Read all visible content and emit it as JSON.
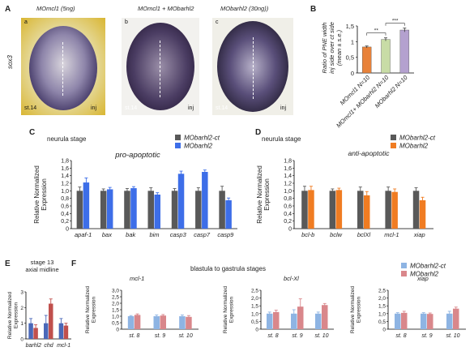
{
  "figure": {
    "panel_letters": [
      "A",
      "B",
      "C",
      "D",
      "E",
      "F"
    ]
  },
  "panelA": {
    "row_label": "sox3",
    "embryos": [
      {
        "title": "MOmcl1 (5ng)",
        "sub": "a",
        "stage": "st.14",
        "side": "inj"
      },
      {
        "title": "MOmcl1 + MObarhl2",
        "sub": "b",
        "stage": "st.14",
        "side": "inj"
      },
      {
        "title": "MObarhl2 (30ng))",
        "sub": "c",
        "stage": "st.14",
        "side": "inj"
      }
    ],
    "colors": {
      "bg_outer": "#e9c84a",
      "embryo": "#3a2f5e",
      "plate_center": "#f2f0e8"
    }
  },
  "chart_data": [
    {
      "id": "B",
      "type": "bar",
      "ylabel": "Ratio of PNE width\ninj side over ct side\n(mean ± s.e.)",
      "ylim": [
        0,
        1.5
      ],
      "yticks": [
        "0",
        "0,5",
        "1",
        "1,5"
      ],
      "categories": [
        "MOmcl1 N=10",
        "MOmcl1+ MObarhl2 N=10",
        "MObarhl2 N=10"
      ],
      "values": [
        0.83,
        1.07,
        1.37
      ],
      "errors": [
        0.03,
        0.05,
        0.06
      ],
      "colors": [
        "#e8823a",
        "#c8dca6",
        "#b4a1cf"
      ],
      "significance": [
        "**",
        "***"
      ]
    },
    {
      "id": "C",
      "type": "bar",
      "title": "pro-apoptotic",
      "header": "neurula stage",
      "ylabel": "Relative Normalized\nExpression",
      "ylim": [
        0,
        1.8
      ],
      "yticks": [
        "0",
        "0,2",
        "0,4",
        "0,6",
        "0,8",
        "1,0",
        "1,2",
        "1,4",
        "1,6",
        "1,8"
      ],
      "categories": [
        "apaf-1",
        "bax",
        "bak",
        "bim",
        "casp3",
        "casp7",
        "casp9"
      ],
      "series": [
        {
          "name": "MObarhl2-ct",
          "color": "#595959",
          "values": [
            1.0,
            1.0,
            1.0,
            1.0,
            1.0,
            1.0,
            1.0
          ],
          "errors": [
            0.1,
            0.05,
            0.06,
            0.08,
            0.06,
            0.08,
            0.12
          ]
        },
        {
          "name": "MObarhl2",
          "color": "#3d6ee8",
          "values": [
            1.22,
            1.04,
            1.07,
            0.9,
            1.45,
            1.5,
            0.75
          ],
          "errors": [
            0.12,
            0.05,
            0.04,
            0.05,
            0.07,
            0.05,
            0.06
          ]
        }
      ],
      "legend": "top-right"
    },
    {
      "id": "D",
      "type": "bar",
      "title": "anti-apoptotic",
      "header": "neurula stage",
      "ylabel": "Relative Normalized\nExpression",
      "ylim": [
        0,
        1.8
      ],
      "yticks": [
        "0",
        "0,2",
        "0,4",
        "0,6",
        "0,8",
        "1,0",
        "1,2",
        "1,4",
        "1,6",
        "1,8"
      ],
      "categories": [
        "bcl-b",
        "bclw",
        "bclXl",
        "mcl-1",
        "xiap"
      ],
      "series": [
        {
          "name": "MObarhl2-ct",
          "color": "#595959",
          "values": [
            1.0,
            1.0,
            1.0,
            1.0,
            1.0
          ],
          "errors": [
            0.12,
            0.05,
            0.1,
            0.1,
            0.08
          ]
        },
        {
          "name": "MObarhl2",
          "color": "#f07c22",
          "values": [
            1.02,
            1.02,
            0.88,
            0.97,
            0.75
          ],
          "errors": [
            0.1,
            0.05,
            0.1,
            0.08,
            0.08
          ]
        }
      ],
      "legend": "top-right"
    },
    {
      "id": "E",
      "type": "bar",
      "header": "stage 13\naxial midline",
      "ylabel": "Relative Normalized\nExpression",
      "ylim": [
        0,
        3
      ],
      "yticks": [
        "0",
        "1",
        "2",
        "3"
      ],
      "categories": [
        "barhl2",
        "chd",
        "mcl-1"
      ],
      "series": [
        {
          "name": "MObarhl2-ct",
          "color": "#4a68b8",
          "values": [
            1.0,
            1.0,
            1.0
          ],
          "errors": [
            0.3,
            0.5,
            0.3
          ]
        },
        {
          "name": "MObarhl2",
          "color": "#c0504d",
          "values": [
            0.7,
            2.25,
            0.85
          ],
          "errors": [
            0.2,
            0.3,
            0.15
          ]
        }
      ]
    },
    {
      "id": "F1",
      "type": "bar",
      "header": "blastula to gastrula stages",
      "title": "mcl-1",
      "ylabel": "Relative Normalized\nExpression",
      "ylim": [
        0,
        3
      ],
      "yticks": [
        "0",
        "0,5",
        "1,0",
        "1,5",
        "2,0",
        "2,5",
        "3,0"
      ],
      "categories": [
        "st. 8",
        "st. 9",
        "st. 10"
      ],
      "series": [
        {
          "name": "MObarhl2-ct",
          "color": "#8eb4e3",
          "values": [
            1.0,
            1.0,
            1.0
          ],
          "errors": [
            0.05,
            0.1,
            0.1
          ]
        },
        {
          "name": "MObarhl2",
          "color": "#d9878b",
          "values": [
            1.1,
            1.05,
            0.95
          ],
          "errors": [
            0.08,
            0.08,
            0.1
          ]
        }
      ],
      "legend": "top-right"
    },
    {
      "id": "F2",
      "type": "bar",
      "title": "bcl-Xl",
      "ylabel": "Relative Normalized\nExpression",
      "ylim": [
        0,
        2.5
      ],
      "yticks": [
        "0",
        "0,5",
        "1,0",
        "1,5",
        "2,0",
        "2,5"
      ],
      "categories": [
        "st. 8",
        "st. 9",
        "st. 10"
      ],
      "series": [
        {
          "name": "MObarhl2-ct",
          "color": "#8eb4e3",
          "values": [
            1.0,
            1.0,
            1.0
          ],
          "errors": [
            0.1,
            0.25,
            0.1
          ]
        },
        {
          "name": "MObarhl2",
          "color": "#d9878b",
          "values": [
            1.1,
            1.45,
            1.55
          ],
          "errors": [
            0.12,
            0.5,
            0.1
          ]
        }
      ]
    },
    {
      "id": "F3",
      "type": "bar",
      "title": "xiap",
      "ylabel": "Relative Normalized\nExpression",
      "ylim": [
        0,
        2.5
      ],
      "yticks": [
        "0",
        "0,5",
        "1,0",
        "1,5",
        "2,0",
        "2,5"
      ],
      "categories": [
        "st. 8",
        "st. 9",
        "st. 10"
      ],
      "series": [
        {
          "name": "MObarhl2-ct",
          "color": "#8eb4e3",
          "values": [
            1.0,
            1.0,
            1.0
          ],
          "errors": [
            0.06,
            0.06,
            0.15
          ]
        },
        {
          "name": "MObarhl2",
          "color": "#d9878b",
          "values": [
            1.05,
            0.98,
            1.32
          ],
          "errors": [
            0.1,
            0.06,
            0.1
          ]
        }
      ]
    }
  ]
}
